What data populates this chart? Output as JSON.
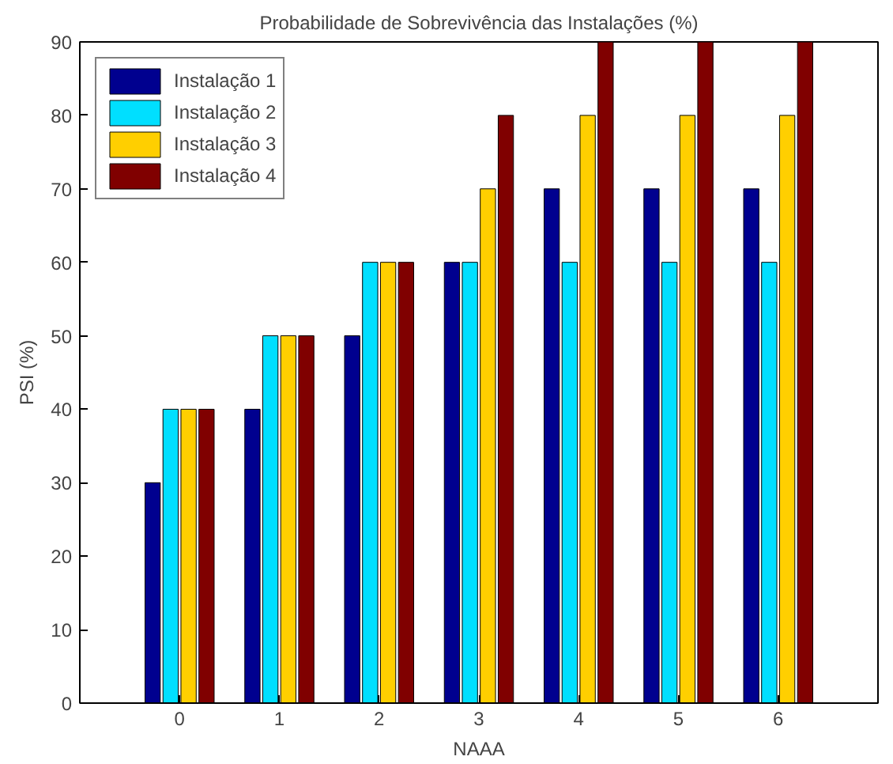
{
  "chart_data": {
    "type": "bar",
    "title": "Probabilidade de Sobrevivência das Instalações (%)",
    "xlabel": "NAAA",
    "ylabel": "PSI (%)",
    "x": [
      0,
      1,
      2,
      3,
      4,
      5,
      6
    ],
    "xlim": [
      -1,
      7
    ],
    "xticks": [
      0,
      1,
      2,
      3,
      4,
      5,
      6
    ],
    "ylim": [
      0,
      90
    ],
    "yticks": [
      0,
      10,
      20,
      30,
      40,
      50,
      60,
      70,
      80,
      90
    ],
    "series": [
      {
        "name": "Instalação 1",
        "color": "#00008f",
        "values": [
          30,
          40,
          50,
          60,
          70,
          70,
          70
        ]
      },
      {
        "name": "Instalação 2",
        "color": "#00dfff",
        "values": [
          40,
          50,
          60,
          60,
          60,
          60,
          60
        ]
      },
      {
        "name": "Instalação 3",
        "color": "#ffcf00",
        "values": [
          40,
          50,
          60,
          70,
          80,
          80,
          80
        ]
      },
      {
        "name": "Instalação 4",
        "color": "#800000",
        "values": [
          40,
          50,
          60,
          80,
          90,
          90,
          90
        ]
      }
    ],
    "legend": "top left",
    "grid": false
  }
}
